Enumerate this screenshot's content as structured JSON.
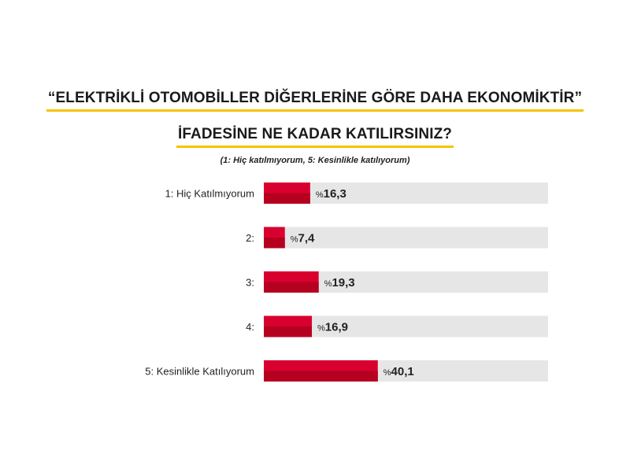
{
  "title_line1": "“ELEKTRİKLİ OTOMOBİLLER DİĞERLERİNE GÖRE DAHA EKONOMİKTİR”",
  "title_line2": "İFADESİNE NE KADAR KATILIRSINIZ?",
  "subtitle": "(1: Hiç katılmıyorum, 5: Kesinlikle katılıyorum)",
  "colors": {
    "bar": "#d8002f",
    "bar_dark": "#b5001f",
    "track": "#e6e6e6",
    "underline": "#f5c400"
  },
  "chart_data": {
    "type": "bar",
    "orientation": "horizontal",
    "categories": [
      "1: Hiç Katılmıyorum",
      "2:",
      "3:",
      "4:",
      "5: Kesinlikle Katılıyorum"
    ],
    "values": [
      16.3,
      7.4,
      19.3,
      16.9,
      40.1
    ],
    "value_labels": [
      "16,3",
      "7,4",
      "19,3",
      "16,9",
      "40,1"
    ],
    "value_prefix": "%",
    "xlim": [
      0,
      100
    ]
  }
}
